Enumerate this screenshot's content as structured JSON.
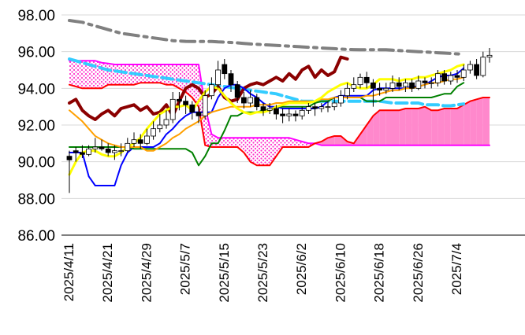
{
  "chart_data": {
    "type": "line",
    "title": "",
    "xlabel": "",
    "ylabel": "",
    "ylim": [
      86,
      98
    ],
    "y_ticks": [
      "98.00",
      "96.00",
      "94.00",
      "92.00",
      "90.00",
      "88.00",
      "86.00"
    ],
    "x_tick_labels": [
      "2025/4/11",
      "2025/4/21",
      "2025/4/29",
      "2025/5/7",
      "2025/5/15",
      "2025/5/23",
      "2025/6/2",
      "2025/6/10",
      "2025/6/18",
      "2025/6/26",
      "2025/7/4"
    ],
    "grid": "horizontal",
    "legend": "none",
    "n_days": 66,
    "tick_days": [
      0,
      6,
      12,
      18,
      24,
      30,
      36,
      42,
      48,
      54,
      60
    ],
    "series": [
      {
        "role": "leading-span-B",
        "color": "#FF00FF",
        "values": [
          95.5,
          95.5,
          95.5,
          95.5,
          95.5,
          95.4,
          95.35,
          95.3,
          95.3,
          95.3,
          95.3,
          95.3,
          95.3,
          95.3,
          95.3,
          95.3,
          95.3,
          95.3,
          95.3,
          95.3,
          95.3,
          93.0,
          91.5,
          91.3,
          91.3,
          91.3,
          91.3,
          91.3,
          91.3,
          91.3,
          91.3,
          91.3,
          91.3,
          91.3,
          91.3,
          91.2,
          91.1,
          91.0,
          91.0,
          90.9,
          90.9,
          90.9,
          90.9,
          90.9,
          90.9,
          90.9,
          90.9,
          90.9,
          90.9,
          90.9,
          90.9,
          90.9,
          90.9,
          90.9,
          90.9,
          90.9,
          90.9,
          90.9,
          90.9,
          90.9,
          90.9,
          90.9,
          90.9,
          90.9,
          90.9,
          90.9
        ]
      },
      {
        "role": "leading-span-A",
        "color": "#FF0000",
        "values": [
          94.2,
          94.1,
          94.0,
          94.0,
          94.0,
          94.0,
          94.2,
          94.2,
          94.2,
          94.2,
          94.2,
          94.3,
          94.3,
          94.3,
          94.3,
          94.2,
          94.2,
          94.0,
          93.8,
          93.5,
          93.0,
          90.9,
          90.8,
          90.8,
          90.8,
          90.8,
          90.8,
          90.5,
          90.0,
          89.8,
          89.8,
          89.8,
          90.3,
          90.8,
          90.8,
          90.8,
          90.8,
          90.8,
          91.0,
          91.1,
          91.3,
          91.4,
          91.4,
          91.1,
          91.0,
          91.5,
          92.0,
          92.5,
          92.8,
          92.8,
          92.8,
          92.8,
          92.9,
          92.9,
          92.9,
          93.0,
          92.8,
          92.8,
          92.9,
          92.9,
          92.9,
          93.1,
          93.3,
          93.4,
          93.5,
          93.5
        ]
      },
      {
        "role": "MA-long",
        "color": "#808080",
        "values": [
          97.7,
          97.65,
          97.6,
          97.5,
          97.4,
          97.3,
          97.2,
          97.1,
          97.0,
          96.95,
          96.9,
          96.85,
          96.8,
          96.75,
          96.7,
          96.65,
          96.6,
          96.58,
          96.56,
          96.55,
          96.55,
          96.55,
          96.55,
          96.53,
          96.52,
          96.5,
          96.48,
          96.45,
          96.42,
          96.4,
          96.38,
          96.36,
          96.34,
          96.32,
          96.3,
          96.28,
          96.26,
          96.24,
          96.22,
          96.2,
          96.18,
          96.16,
          96.14,
          96.12,
          96.11,
          96.1,
          96.1,
          96.1,
          96.1,
          96.1,
          96.08,
          96.06,
          96.04,
          96.02,
          96.0,
          95.98,
          95.96,
          95.94,
          95.92,
          95.9,
          95.88,
          95.86
        ]
      },
      {
        "role": "MA-mid",
        "color": "#33CCFF",
        "values": [
          95.6,
          95.5,
          95.4,
          95.3,
          95.2,
          95.1,
          95.0,
          94.95,
          94.9,
          94.85,
          94.8,
          94.75,
          94.7,
          94.65,
          94.6,
          94.55,
          94.5,
          94.45,
          94.4,
          94.35,
          94.3,
          94.25,
          94.2,
          94.15,
          94.1,
          94.05,
          94.0,
          93.95,
          93.9,
          93.85,
          93.8,
          93.75,
          93.7,
          93.6,
          93.5,
          93.4,
          93.3,
          93.3,
          93.3,
          93.3,
          93.3,
          93.3,
          93.3,
          93.3,
          93.3,
          93.3,
          93.3,
          93.3,
          93.3,
          93.25,
          93.2,
          93.2,
          93.2,
          93.2,
          93.2,
          93.1,
          93.1,
          93.1,
          93.05,
          93.05,
          93.1,
          93.15
        ]
      },
      {
        "role": "lagging-span",
        "color": "#8B0000",
        "values": [
          93.2,
          93.4,
          92.8,
          92.5,
          92.3,
          92.6,
          92.8,
          92.5,
          92.9,
          93.0,
          93.1,
          92.8,
          93.0,
          92.6,
          92.7,
          93.1,
          92.5,
          93.3,
          94.0,
          94.2,
          94.0,
          93.5,
          93.7,
          94.1,
          93.5,
          93.3,
          93.4,
          94.0,
          94.2,
          94.3,
          94.2,
          94.4,
          94.6,
          94.4,
          94.8,
          94.5,
          95.0,
          95.2,
          94.6,
          95.0,
          94.7,
          94.9,
          95.7,
          95.6
        ]
      },
      {
        "role": "conversion-line",
        "color": "#0000FF",
        "values": [
          90.5,
          90.5,
          90.5,
          89.2,
          88.7,
          88.7,
          88.7,
          88.7,
          89.8,
          90.5,
          90.8,
          90.8,
          90.8,
          90.8,
          91.0,
          91.5,
          91.8,
          92.2,
          92.5,
          92.7,
          92.7,
          92.7,
          92.7,
          93.5,
          94.0,
          94.2,
          94.2,
          94.0,
          93.7,
          93.5,
          93.2,
          93.0,
          93.0,
          92.9,
          92.9,
          92.9,
          92.9,
          92.9,
          92.9,
          93.0,
          93.3,
          93.5,
          93.6,
          93.6,
          93.6,
          93.6,
          93.6,
          93.9,
          94.0,
          94.0,
          94.0,
          94.0,
          94.0,
          94.1,
          94.1,
          94.2,
          94.4,
          94.6,
          94.7,
          94.7,
          94.8,
          95.1
        ]
      },
      {
        "role": "base-line",
        "color": "#008000",
        "values": [
          90.8,
          90.8,
          90.8,
          90.8,
          90.8,
          90.8,
          90.8,
          90.8,
          90.8,
          90.8,
          90.7,
          90.7,
          90.7,
          90.7,
          90.7,
          90.7,
          90.7,
          90.7,
          90.7,
          90.5,
          89.8,
          90.3,
          91.0,
          91.0,
          91.7,
          92.5,
          92.5,
          92.7,
          92.7,
          92.7,
          92.8,
          92.8,
          93.0,
          93.0,
          93.0,
          93.0,
          93.0,
          93.0,
          93.2,
          93.3,
          93.3,
          93.5,
          93.5,
          93.5,
          93.5,
          93.5,
          93.3,
          93.3,
          93.3,
          93.5,
          93.5,
          93.5,
          93.5,
          93.5,
          93.5,
          93.5,
          93.5,
          93.6,
          93.7,
          93.7,
          94.1,
          94.3
        ]
      },
      {
        "role": "MA-short-orange",
        "color": "#FFA000",
        "values": [
          92.8,
          92.5,
          92.2,
          91.8,
          91.4,
          91.2,
          91.0,
          90.9,
          90.8,
          90.8,
          90.8,
          90.8,
          90.6,
          90.6,
          90.8,
          91.0,
          91.3,
          91.5,
          91.8,
          92.0,
          92.2,
          92.5,
          92.7,
          92.8,
          92.9,
          93.0,
          93.0,
          93.0,
          93.0,
          93.1,
          93.1,
          93.1,
          93.2,
          93.2,
          93.3,
          93.3,
          93.3,
          93.3,
          93.3,
          93.4,
          93.4,
          93.5,
          93.5,
          93.5,
          93.5,
          93.5,
          93.6,
          93.6,
          93.7,
          93.8,
          93.9,
          93.9,
          94.0,
          94.0,
          94.1,
          94.2,
          94.3,
          94.3,
          94.4,
          94.5,
          94.5,
          94.6
        ]
      },
      {
        "role": "MA-short-yellow",
        "color": "#FFFF00",
        "values": [
          89.3,
          90.0,
          90.5,
          90.6,
          90.6,
          90.4,
          90.3,
          90.3,
          90.5,
          90.8,
          91.0,
          91.3,
          91.8,
          92.2,
          92.6,
          92.8,
          93.0,
          93.0,
          93.1,
          92.8,
          93.3,
          93.8,
          94.1,
          94.0,
          93.6,
          93.2,
          92.9,
          92.7,
          92.6,
          92.7,
          92.7,
          92.8,
          93.0,
          93.1,
          93.2,
          93.2,
          93.2,
          93.2,
          93.3,
          93.5,
          93.8,
          94.0,
          94.2,
          94.3,
          94.1,
          94.0,
          94.0,
          94.2,
          94.5,
          94.5,
          94.5,
          94.4,
          94.5,
          94.5,
          94.6,
          94.6,
          94.7,
          94.8,
          94.9,
          95.0,
          95.2,
          95.3
        ]
      },
      {
        "role": "price-close",
        "color": "#000000",
        "values": [
          90.1,
          90.5,
          90.4,
          90.7,
          90.8,
          90.7,
          90.5,
          90.6,
          90.6,
          91.0,
          91.2,
          91.0,
          91.4,
          91.8,
          92.0,
          92.3,
          93.4,
          93.3,
          93.1,
          92.7,
          92.5,
          93.6,
          94.2,
          95.0,
          94.8,
          94.2,
          93.5,
          93.2,
          93.5,
          93.0,
          92.8,
          92.9,
          92.6,
          92.5,
          92.6,
          92.5,
          92.8,
          93.0,
          92.9,
          93.0,
          93.0,
          93.2,
          93.6,
          94.0,
          94.2,
          94.6,
          94.3,
          94.0,
          93.9,
          94.0,
          94.3,
          94.1,
          94.3,
          94.0,
          94.4,
          94.3,
          94.3,
          94.8,
          94.4,
          94.7,
          94.6,
          95.0,
          95.3,
          94.7,
          95.7,
          95.8
        ]
      }
    ],
    "candles": [
      {
        "o": 90.3,
        "h": 90.6,
        "l": 88.3,
        "c": 90.1
      },
      {
        "o": 90.6,
        "h": 90.8,
        "l": 90.0,
        "c": 90.5
      },
      {
        "o": 90.5,
        "h": 90.9,
        "l": 90.2,
        "c": 90.4
      },
      {
        "o": 90.4,
        "h": 90.9,
        "l": 90.3,
        "c": 90.7
      },
      {
        "o": 90.7,
        "h": 91.3,
        "l": 90.5,
        "c": 90.8
      },
      {
        "o": 90.8,
        "h": 91.2,
        "l": 90.6,
        "c": 90.7
      },
      {
        "o": 90.7,
        "h": 91.0,
        "l": 90.3,
        "c": 90.5
      },
      {
        "o": 90.5,
        "h": 90.9,
        "l": 90.1,
        "c": 90.6
      },
      {
        "o": 90.6,
        "h": 91.0,
        "l": 90.3,
        "c": 90.6
      },
      {
        "o": 90.6,
        "h": 91.3,
        "l": 90.5,
        "c": 91.0
      },
      {
        "o": 91.0,
        "h": 91.6,
        "l": 90.8,
        "c": 91.2
      },
      {
        "o": 91.2,
        "h": 91.5,
        "l": 90.7,
        "c": 91.0
      },
      {
        "o": 91.0,
        "h": 91.8,
        "l": 90.9,
        "c": 91.4
      },
      {
        "o": 91.4,
        "h": 92.2,
        "l": 91.2,
        "c": 91.8
      },
      {
        "o": 91.8,
        "h": 92.6,
        "l": 91.6,
        "c": 92.0
      },
      {
        "o": 92.0,
        "h": 92.8,
        "l": 91.8,
        "c": 92.3
      },
      {
        "o": 92.3,
        "h": 93.8,
        "l": 92.1,
        "c": 93.4
      },
      {
        "o": 93.4,
        "h": 93.8,
        "l": 92.8,
        "c": 93.3
      },
      {
        "o": 93.3,
        "h": 93.6,
        "l": 92.6,
        "c": 93.1
      },
      {
        "o": 93.1,
        "h": 93.3,
        "l": 92.3,
        "c": 92.7
      },
      {
        "o": 92.7,
        "h": 93.0,
        "l": 92.1,
        "c": 92.5
      },
      {
        "o": 92.5,
        "h": 93.9,
        "l": 92.3,
        "c": 93.6
      },
      {
        "o": 93.6,
        "h": 94.6,
        "l": 93.4,
        "c": 94.2
      },
      {
        "o": 94.2,
        "h": 95.5,
        "l": 94.0,
        "c": 95.0
      },
      {
        "o": 95.3,
        "h": 95.6,
        "l": 94.5,
        "c": 94.8
      },
      {
        "o": 94.8,
        "h": 95.0,
        "l": 93.8,
        "c": 94.2
      },
      {
        "o": 94.2,
        "h": 94.4,
        "l": 93.2,
        "c": 93.5
      },
      {
        "o": 93.5,
        "h": 93.8,
        "l": 92.9,
        "c": 93.2
      },
      {
        "o": 93.2,
        "h": 93.9,
        "l": 93.0,
        "c": 93.5
      },
      {
        "o": 93.5,
        "h": 93.7,
        "l": 92.8,
        "c": 93.0
      },
      {
        "o": 93.0,
        "h": 93.2,
        "l": 92.5,
        "c": 92.8
      },
      {
        "o": 92.8,
        "h": 93.2,
        "l": 92.6,
        "c": 92.9
      },
      {
        "o": 92.9,
        "h": 93.1,
        "l": 92.3,
        "c": 92.6
      },
      {
        "o": 92.6,
        "h": 92.9,
        "l": 92.1,
        "c": 92.5
      },
      {
        "o": 92.5,
        "h": 92.9,
        "l": 92.2,
        "c": 92.6
      },
      {
        "o": 92.6,
        "h": 92.8,
        "l": 92.2,
        "c": 92.5
      },
      {
        "o": 92.5,
        "h": 93.0,
        "l": 92.3,
        "c": 92.8
      },
      {
        "o": 92.8,
        "h": 93.2,
        "l": 92.6,
        "c": 93.0
      },
      {
        "o": 93.0,
        "h": 93.2,
        "l": 92.5,
        "c": 92.9
      },
      {
        "o": 92.9,
        "h": 93.2,
        "l": 92.7,
        "c": 93.0
      },
      {
        "o": 93.0,
        "h": 93.3,
        "l": 92.7,
        "c": 93.0
      },
      {
        "o": 93.0,
        "h": 93.5,
        "l": 92.8,
        "c": 93.2
      },
      {
        "o": 93.2,
        "h": 93.9,
        "l": 93.0,
        "c": 93.6
      },
      {
        "o": 93.6,
        "h": 94.3,
        "l": 93.4,
        "c": 94.0
      },
      {
        "o": 94.0,
        "h": 94.6,
        "l": 93.8,
        "c": 94.2
      },
      {
        "o": 94.2,
        "h": 94.8,
        "l": 94.0,
        "c": 94.6
      },
      {
        "o": 94.6,
        "h": 94.9,
        "l": 94.0,
        "c": 94.3
      },
      {
        "o": 94.3,
        "h": 94.5,
        "l": 93.0,
        "c": 94.0
      },
      {
        "o": 94.0,
        "h": 94.3,
        "l": 93.6,
        "c": 93.9
      },
      {
        "o": 93.9,
        "h": 94.3,
        "l": 93.7,
        "c": 94.0
      },
      {
        "o": 94.0,
        "h": 94.7,
        "l": 93.8,
        "c": 94.3
      },
      {
        "o": 94.3,
        "h": 94.6,
        "l": 93.9,
        "c": 94.1
      },
      {
        "o": 94.1,
        "h": 94.5,
        "l": 93.8,
        "c": 94.3
      },
      {
        "o": 94.3,
        "h": 94.5,
        "l": 93.8,
        "c": 94.0
      },
      {
        "o": 94.0,
        "h": 94.7,
        "l": 93.9,
        "c": 94.4
      },
      {
        "o": 94.4,
        "h": 94.6,
        "l": 94.0,
        "c": 94.3
      },
      {
        "o": 94.3,
        "h": 94.6,
        "l": 94.0,
        "c": 94.3
      },
      {
        "o": 94.3,
        "h": 95.0,
        "l": 94.1,
        "c": 94.8
      },
      {
        "o": 94.8,
        "h": 95.0,
        "l": 94.2,
        "c": 94.4
      },
      {
        "o": 94.4,
        "h": 94.9,
        "l": 94.2,
        "c": 94.7
      },
      {
        "o": 94.7,
        "h": 95.0,
        "l": 94.3,
        "c": 94.6
      },
      {
        "o": 94.6,
        "h": 95.3,
        "l": 94.4,
        "c": 95.0
      },
      {
        "o": 95.0,
        "h": 95.5,
        "l": 94.8,
        "c": 95.3
      },
      {
        "o": 95.3,
        "h": 95.6,
        "l": 94.5,
        "c": 94.7
      },
      {
        "o": 94.7,
        "h": 96.0,
        "l": 94.6,
        "c": 95.7
      },
      {
        "o": 95.7,
        "h": 96.2,
        "l": 95.4,
        "c": 95.8
      }
    ],
    "cloud_fill": {
      "bearish": "#FF66CC",
      "bullish": "#FF88CC"
    }
  }
}
